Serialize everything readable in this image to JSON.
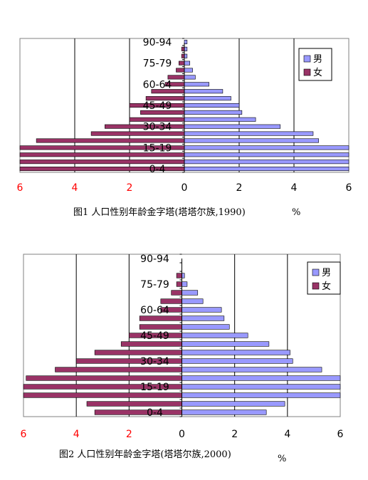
{
  "colors": {
    "male": "#9999ff",
    "female": "#993366",
    "axis_left": "#ff0000",
    "axis_right": "#000000"
  },
  "chart_data": [
    {
      "type": "bar",
      "orientation": "horizontal-population-pyramid",
      "caption_prefix": "图1",
      "caption_text": "人口性别年龄金字塔(塔塔尔族,1990)",
      "unit": "%",
      "x_ticks_left": [
        "6",
        "4",
        "2"
      ],
      "x_ticks_right": [
        "0",
        "2",
        "4",
        "6"
      ],
      "xlim": [
        -6,
        6
      ],
      "grid": true,
      "legend": {
        "position": "top-right",
        "entries": [
          "男",
          "女"
        ]
      },
      "age_labels": [
        "90-94",
        "75-79",
        "60-64",
        "45-49",
        "30-34",
        "15-19",
        "0-4"
      ],
      "series": [
        {
          "name": "男",
          "values": [
            0.1,
            0.1,
            0.1,
            0.2,
            0.3,
            0.4,
            0.9,
            1.4,
            1.7,
            2.0,
            2.1,
            2.6,
            3.5,
            4.7,
            4.9,
            6.0,
            6.0,
            6.0,
            6.0
          ]
        },
        {
          "name": "女",
          "values": [
            0.0,
            0.1,
            0.1,
            0.2,
            0.3,
            0.6,
            0.7,
            1.2,
            1.4,
            2.0,
            1.6,
            2.0,
            2.9,
            3.4,
            5.4,
            6.0,
            6.0,
            6.0,
            6.0
          ]
        }
      ]
    },
    {
      "type": "bar",
      "orientation": "horizontal-population-pyramid",
      "caption_prefix": "图2",
      "caption_text": "人口性别年龄金字塔(塔塔尔族,2000)",
      "unit": "%",
      "x_ticks_left": [
        "6",
        "4",
        "2"
      ],
      "x_ticks_right": [
        "0",
        "2",
        "4",
        "6"
      ],
      "xlim": [
        -6,
        6
      ],
      "grid": true,
      "legend": {
        "position": "top-right",
        "entries": [
          "男",
          "女"
        ]
      },
      "age_labels": [
        "90-94",
        "75-79",
        "60-64",
        "45-49",
        "30-34",
        "15-19",
        "0-4"
      ],
      "series": [
        {
          "name": "男",
          "values": [
            0.0,
            0.0,
            0.1,
            0.2,
            0.6,
            0.8,
            1.5,
            1.6,
            1.8,
            2.5,
            3.3,
            4.1,
            4.2,
            5.3,
            6.0,
            6.0,
            6.0,
            3.9,
            3.2
          ]
        },
        {
          "name": "女",
          "values": [
            0.0,
            0.0,
            0.2,
            0.2,
            0.4,
            0.8,
            0.8,
            1.6,
            1.6,
            2.0,
            2.3,
            3.3,
            4.0,
            4.8,
            5.9,
            6.0,
            6.0,
            3.6,
            3.3
          ]
        }
      ]
    }
  ]
}
